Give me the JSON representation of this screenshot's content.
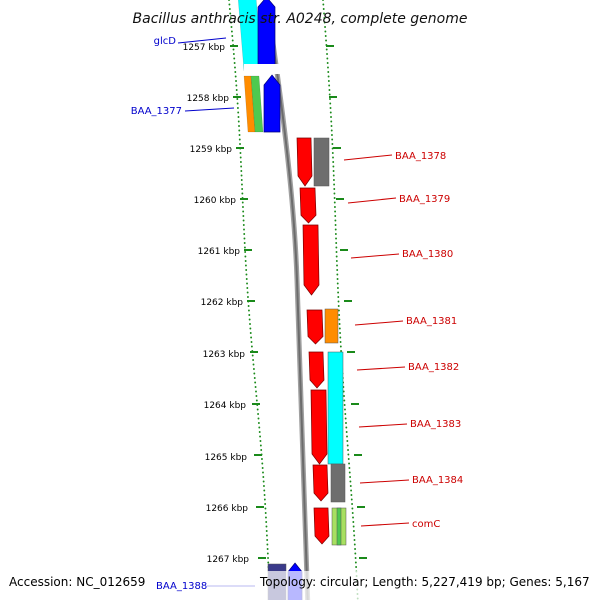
{
  "title": "Bacillus anthracis str. A0248, complete genome",
  "footer": {
    "accession": "Accession: NC_012659",
    "topology": "Topology: circular; Length: 5,227,419 bp; Genes: 5,167",
    "bottom_gene": "BAA_1388"
  },
  "ticks": [
    "1257 kbp",
    "1258 kbp",
    "1259 kbp",
    "1260 kbp",
    "1261 kbp",
    "1262 kbp",
    "1263 kbp",
    "1264 kbp",
    "1265 kbp",
    "1266 kbp",
    "1267 kbp"
  ],
  "left_genes": [
    {
      "label": "glcD",
      "color": "#0000cc"
    },
    {
      "label": "BAA_1377",
      "color": "#0000cc"
    }
  ],
  "right_genes": [
    {
      "label": "BAA_1378",
      "color": "#cc0000"
    },
    {
      "label": "BAA_1379",
      "color": "#cc0000"
    },
    {
      "label": "BAA_1380",
      "color": "#cc0000"
    },
    {
      "label": "BAA_1381",
      "color": "#cc0000"
    },
    {
      "label": "BAA_1382",
      "color": "#cc0000"
    },
    {
      "label": "BAA_1383",
      "color": "#cc0000"
    },
    {
      "label": "BAA_1384",
      "color": "#cc0000"
    },
    {
      "label": "comC",
      "color": "#cc0000"
    }
  ],
  "colors": {
    "forward": "#ff0000",
    "reverse": "#0000ff",
    "cyan": "#00ffff",
    "gray": "#6e6e6e",
    "orange": "#ff8c00",
    "green": "#4fc94f",
    "lime": "#a8e060",
    "navy": "#3a3a8a",
    "backbone": "#909090",
    "tick": "#1a8a1a"
  }
}
